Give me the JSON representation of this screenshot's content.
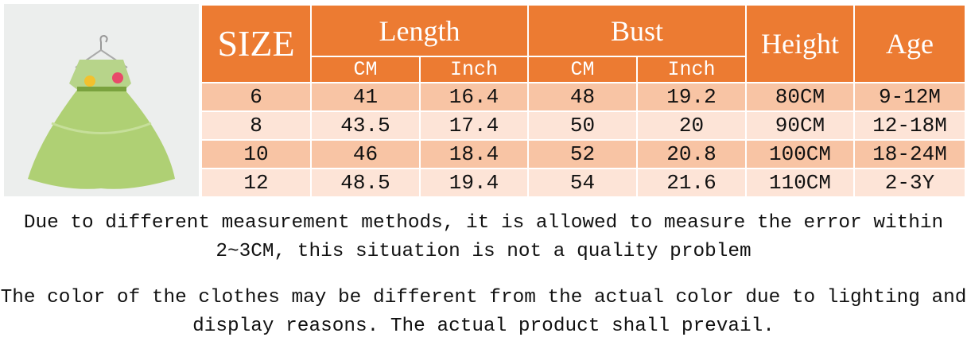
{
  "table": {
    "headers": {
      "size": "SIZE",
      "length": "Length",
      "bust": "Bust",
      "height": "Height",
      "age": "Age",
      "sub": [
        "CM",
        "Inch",
        "CM",
        "Inch"
      ]
    },
    "rows": [
      [
        "6",
        "41",
        "16.4",
        "48",
        "19.2",
        "80CM",
        "9-12M"
      ],
      [
        "8",
        "43.5",
        "17.4",
        "50",
        "20",
        "90CM",
        "12-18M"
      ],
      [
        "10",
        "46",
        "18.4",
        "52",
        "20.8",
        "100CM",
        "18-24M"
      ],
      [
        "12",
        "48.5",
        "19.4",
        "54",
        "21.6",
        "110CM",
        "2-3Y"
      ]
    ]
  },
  "notes": [
    "Due to different measurement methods, it is allowed to measure the error within 2~3CM, this situation is not a quality problem",
    "The color of the clothes may be different from the actual color due to lighting and display reasons. The actual product shall prevail."
  ]
}
